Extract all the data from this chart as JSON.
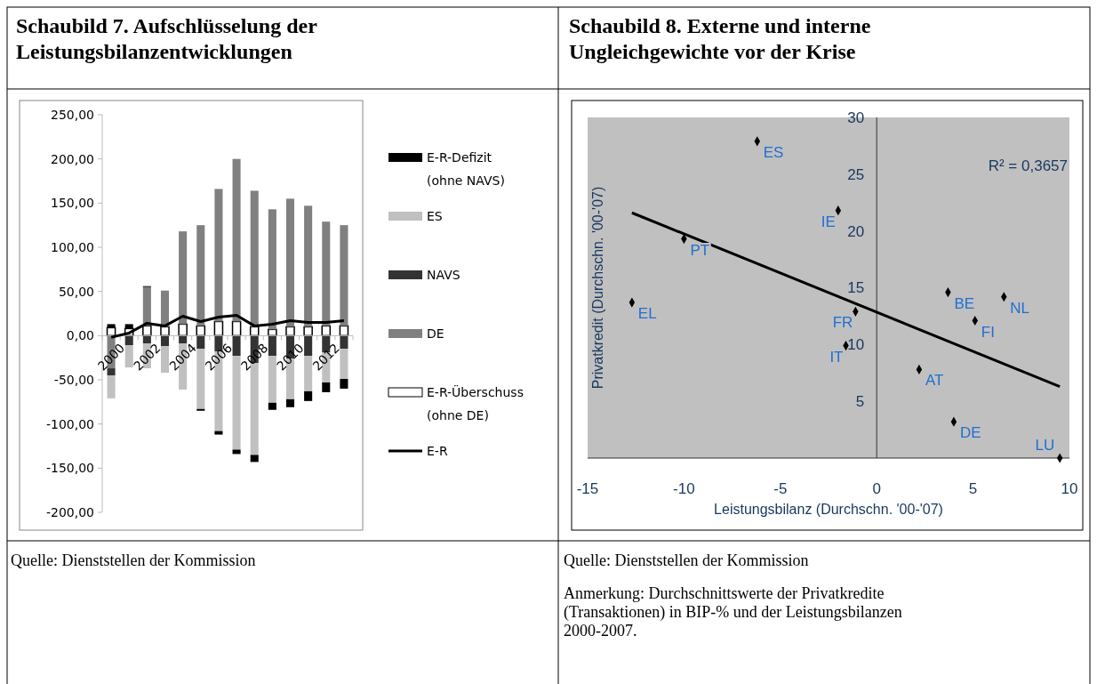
{
  "chart_data": [
    {
      "type": "bar",
      "title": "Schaubild 7. Aufschlüsselung der Leistungsbilanzentwicklungen",
      "stacked": true,
      "legend": "right",
      "categories": [
        "2000",
        null,
        "2002",
        null,
        "2004",
        null,
        "2006",
        null,
        "2008",
        null,
        "2010",
        null,
        "2012",
        null
      ],
      "series": [
        {
          "name": "E-R-Überschuss (ohne DE)",
          "color": "#ffffff",
          "values": [
            9,
            8,
            11,
            10,
            13,
            11,
            16,
            16,
            10,
            7,
            10,
            10,
            11,
            11
          ]
        },
        {
          "name": "DE",
          "color": "#808080",
          "values": [
            -37,
            0,
            44,
            41,
            105,
            114,
            150,
            184,
            154,
            136,
            145,
            137,
            118,
            114
          ]
        },
        {
          "name": "NAVS",
          "color": "#333333",
          "values": [
            -8,
            -11,
            -9,
            -12,
            -9,
            -15,
            -18,
            -23,
            -31,
            -23,
            -26,
            -23,
            -19,
            -15
          ]
        },
        {
          "name": "ES",
          "color": "#c0c0c0",
          "values": [
            -26,
            -25,
            -28,
            -30,
            -52,
            -68,
            -90,
            -106,
            -104,
            -53,
            -46,
            -40,
            -34,
            -34
          ]
        },
        {
          "name": "E-R-Defizit (ohne NAVS)",
          "color": "#000000",
          "values": [
            4,
            5,
            1,
            0,
            0,
            -2,
            -4,
            -5,
            -8,
            -8,
            -9,
            -11,
            -11,
            -11
          ]
        },
        {
          "name": "E-R",
          "type": "line",
          "color": "#000000",
          "values": [
            -2,
            3,
            14,
            11,
            22,
            16,
            21,
            23,
            11,
            13,
            17,
            15,
            15,
            17
          ]
        }
      ],
      "ylim": [
        -200,
        250
      ],
      "yticks": [
        {
          "value": -200,
          "label": "-200,00"
        },
        {
          "value": -150,
          "label": "-150,00"
        },
        {
          "value": -100,
          "label": "-100,00"
        },
        {
          "value": -50,
          "label": "-50,00"
        },
        {
          "value": 0,
          "label": "0,00"
        },
        {
          "value": 50,
          "label": "50,00"
        },
        {
          "value": 100,
          "label": "100,00"
        },
        {
          "value": 150,
          "label": "150,00"
        },
        {
          "value": 200,
          "label": "200,00"
        },
        {
          "value": 250,
          "label": "250,00"
        }
      ],
      "annotations": [
        "Quelle: Dienststellen der Kommission"
      ]
    },
    {
      "type": "scatter",
      "title": "Schaubild 8. Externe und interne Ungleichgewichte vor der Krise",
      "xlabel": "Leistungsbilanz (Durchschn. '00-'07)",
      "ylabel": "Privatkredit (Durchschn. '00-'07)",
      "marker": "diamond",
      "xlim": [
        -15,
        10
      ],
      "xticks": [
        -15,
        -10,
        -5,
        0,
        5,
        10
      ],
      "ylim": [
        0,
        30
      ],
      "yticks": [
        5,
        10,
        15,
        20,
        25,
        30
      ],
      "series": [
        {
          "color": "#000000",
          "x": [
            -6.2,
            -10,
            -12.7,
            -2,
            -1.1,
            -1.6,
            3.7,
            6.6,
            5.1,
            2.2,
            4,
            9.5
          ],
          "values": [
            27.9,
            19.3,
            13.7,
            21.8,
            12.9,
            9.9,
            14.6,
            14.2,
            12.1,
            7.8,
            3.2,
            0
          ]
        },
        {
          "type": "line",
          "color": "#000000",
          "marker": "none",
          "x": [
            -12.7,
            9.5
          ],
          "values": [
            21.6,
            6.3
          ]
        }
      ],
      "annotations": [
        "R² = 0,3657",
        {
          "text": "ES",
          "x": -6.2,
          "y": 27.9
        },
        {
          "text": "PT",
          "x": -10,
          "y": 19.3
        },
        {
          "text": "EL",
          "x": -12.7,
          "y": 13.7
        },
        {
          "text": "IE",
          "x": -2,
          "y": 21.8
        },
        {
          "text": "FR",
          "x": -1.1,
          "y": 12.9
        },
        {
          "text": "IT",
          "x": -1.6,
          "y": 9.9
        },
        {
          "text": "BE",
          "x": 3.7,
          "y": 14.6
        },
        {
          "text": "NL",
          "x": 6.6,
          "y": 14.2
        },
        {
          "text": "FI",
          "x": 5.1,
          "y": 12.1
        },
        {
          "text": "AT",
          "x": 2.2,
          "y": 7.8
        },
        {
          "text": "DE",
          "x": 4,
          "y": 3.2
        },
        {
          "text": "LU",
          "x": 9.5,
          "y": 0
        },
        "Quelle: Dienststellen der Kommission",
        "Anmerkung: Durchschnittswerte der Privatkredite (Transaktionen) in BIP-% und der Leistungsbilanzen 2000-2007."
      ]
    }
  ]
}
